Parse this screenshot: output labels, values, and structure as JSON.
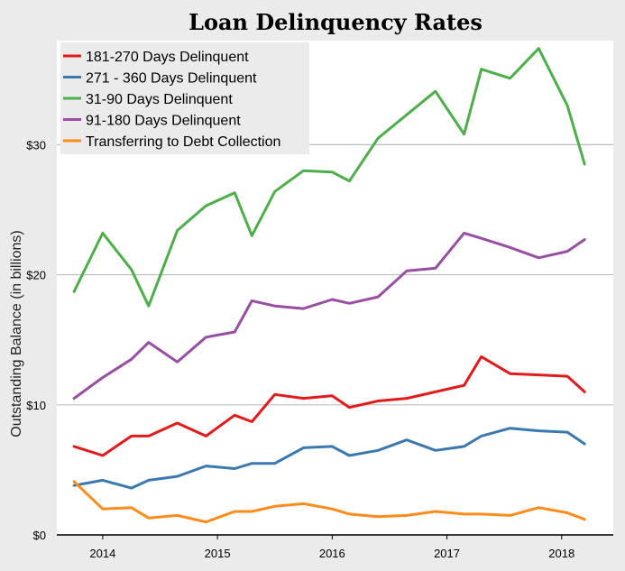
{
  "chart_data": {
    "type": "line",
    "title": "Loan Delinquency Rates",
    "xlabel": "",
    "ylabel": "Outstanding Balance (in billions)",
    "ylim": [
      0,
      38
    ],
    "xlim": [
      2013.6,
      2018.45
    ],
    "grid": "horizontal",
    "legend_position": "top-left",
    "x_ticks": [
      {
        "value": 2014,
        "label": "2014"
      },
      {
        "value": 2015,
        "label": "2015"
      },
      {
        "value": 2016,
        "label": "2016"
      },
      {
        "value": 2017,
        "label": "2017"
      },
      {
        "value": 2018,
        "label": "2018"
      }
    ],
    "y_ticks": [
      {
        "value": 0,
        "label": "$0"
      },
      {
        "value": 10,
        "label": "$10"
      },
      {
        "value": 20,
        "label": "$20"
      },
      {
        "value": 30,
        "label": "$30"
      }
    ],
    "x": [
      2013.75,
      2014.0,
      2014.25,
      2014.4,
      2014.65,
      2014.9,
      2015.15,
      2015.3,
      2015.5,
      2015.75,
      2016.0,
      2016.15,
      2016.4,
      2016.65,
      2016.9,
      2017.15,
      2017.3,
      2017.55,
      2017.8,
      2018.05,
      2018.2
    ],
    "series": [
      {
        "name": "181-270 Days Delinquent",
        "color": "#e31a1c",
        "values": [
          6.8,
          6.1,
          7.6,
          7.6,
          8.6,
          7.6,
          9.2,
          8.7,
          10.8,
          10.5,
          10.7,
          9.8,
          10.3,
          10.5,
          11.0,
          11.5,
          13.7,
          12.4,
          12.3,
          12.2,
          11.0
        ]
      },
      {
        "name": "271 - 360 Days Delinquent",
        "color": "#3a78b0",
        "values": [
          3.8,
          4.2,
          3.6,
          4.2,
          4.5,
          5.3,
          5.1,
          5.5,
          5.5,
          6.7,
          6.8,
          6.1,
          6.5,
          7.3,
          6.5,
          6.8,
          7.6,
          8.2,
          8.0,
          7.9,
          7.0
        ]
      },
      {
        "name": "31-90 Days Delinquent",
        "color": "#4daf4a",
        "values": [
          18.7,
          23.2,
          20.4,
          17.6,
          23.4,
          25.3,
          26.3,
          23.0,
          26.4,
          28.0,
          27.9,
          27.2,
          30.5,
          32.3,
          34.1,
          30.8,
          35.8,
          35.1,
          37.4,
          33.0,
          28.5
        ]
      },
      {
        "name": "91-180 Days Delinquent",
        "color": "#984ea3",
        "values": [
          10.5,
          12.1,
          13.5,
          14.8,
          13.3,
          15.2,
          15.6,
          18.0,
          17.6,
          17.4,
          18.1,
          17.8,
          18.3,
          20.3,
          20.5,
          23.2,
          22.8,
          22.1,
          21.3,
          21.8,
          22.7
        ]
      },
      {
        "name": "Transferring to Debt Collection",
        "color": "#ff8c1a",
        "values": [
          4.1,
          2.0,
          2.1,
          1.3,
          1.5,
          1.0,
          1.8,
          1.8,
          2.2,
          2.4,
          2.0,
          1.6,
          1.4,
          1.5,
          1.8,
          1.6,
          1.6,
          1.5,
          2.1,
          1.7,
          1.2
        ]
      }
    ]
  }
}
